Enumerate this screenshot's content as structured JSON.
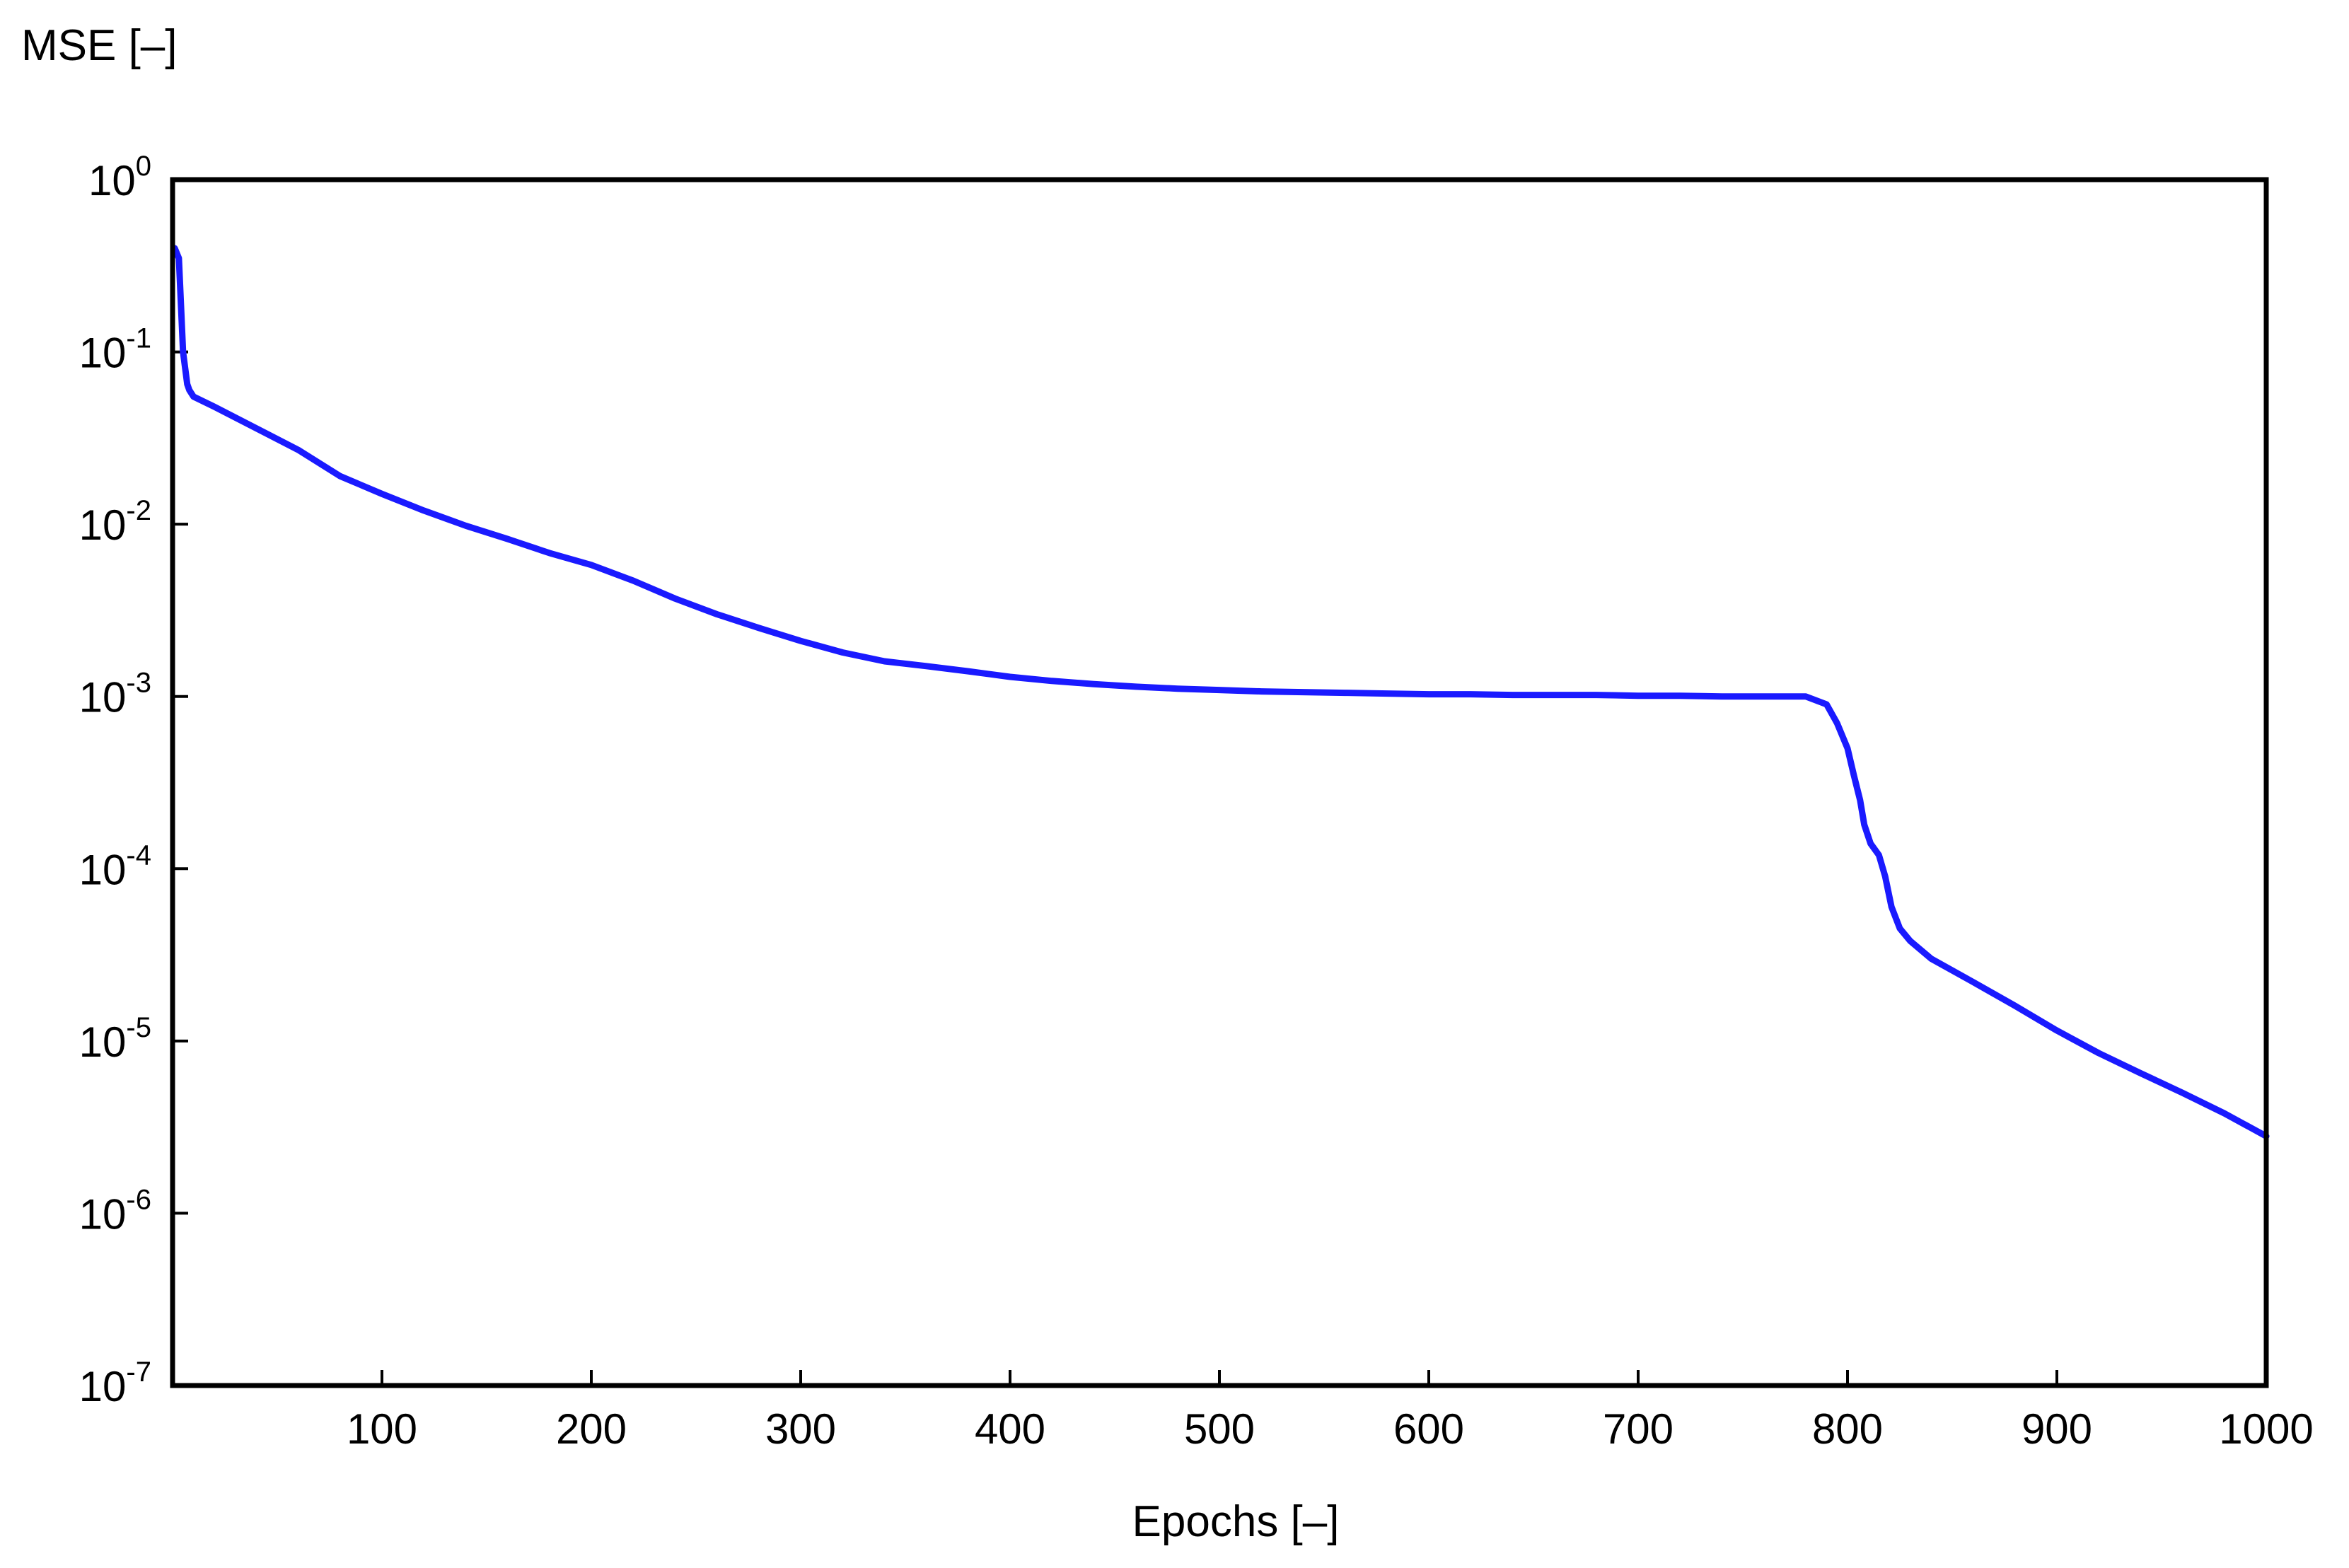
{
  "chart_data": {
    "type": "line",
    "ylabel": "MSE [–]",
    "xlabel": "Epochs [–]",
    "y_scale": "log",
    "xlim": [
      0,
      1000
    ],
    "ylim": [
      1e-07,
      1
    ],
    "x_ticks": [
      100,
      200,
      300,
      400,
      500,
      600,
      700,
      800,
      900,
      1000
    ],
    "x_tick_labels": [
      "100",
      "200",
      "300",
      "400",
      "500",
      "600",
      "700",
      "800",
      "900",
      "1000"
    ],
    "y_ticks": [
      {
        "value": 1,
        "base": "10",
        "exp": "0"
      },
      {
        "value": 0.1,
        "base": "10",
        "exp": "-1"
      },
      {
        "value": 0.01,
        "base": "10",
        "exp": "-2"
      },
      {
        "value": 0.001,
        "base": "10",
        "exp": "-3"
      },
      {
        "value": 0.0001,
        "base": "10",
        "exp": "-4"
      },
      {
        "value": 1e-05,
        "base": "10",
        "exp": "-5"
      },
      {
        "value": 1e-06,
        "base": "10",
        "exp": "-6"
      },
      {
        "value": 1e-07,
        "base": "10",
        "exp": "-7"
      }
    ],
    "grid": false,
    "line_color": "#1a1aff",
    "series": [
      {
        "x": [
          1,
          3,
          5,
          7,
          8,
          10,
          20,
          40,
          60,
          80,
          100,
          120,
          140,
          160,
          180,
          200,
          220,
          240,
          260,
          280,
          300,
          320,
          340,
          360,
          380,
          400,
          420,
          440,
          460,
          480,
          500,
          520,
          540,
          560,
          580,
          600,
          620,
          640,
          660,
          680,
          700,
          720,
          740,
          760,
          780,
          790,
          795,
          800,
          803,
          806,
          808,
          811,
          815,
          818,
          821,
          825,
          830,
          840,
          860,
          880,
          900,
          920,
          940,
          960,
          980,
          1000
        ],
        "y": [
          0.4,
          0.35,
          0.1,
          0.065,
          0.06,
          0.055,
          0.048,
          0.036,
          0.027,
          0.019,
          0.015,
          0.012,
          0.0098,
          0.0082,
          0.0068,
          0.0058,
          0.0047,
          0.0037,
          0.003,
          0.0025,
          0.0021,
          0.0018,
          0.0016,
          0.0015,
          0.0014,
          0.0013,
          0.00123,
          0.00118,
          0.00114,
          0.00111,
          0.00109,
          0.00107,
          0.00106,
          0.00105,
          0.00104,
          0.00103,
          0.00103,
          0.00102,
          0.00102,
          0.00102,
          0.00101,
          0.00101,
          0.001,
          0.001,
          0.001,
          0.0009,
          0.0007,
          0.0005,
          0.00035,
          0.00025,
          0.00018,
          0.00014,
          0.00012,
          9e-05,
          6e-05,
          4.5e-05,
          3.8e-05,
          3e-05,
          2.2e-05,
          1.6e-05,
          1.15e-05,
          8.5e-06,
          6.5e-06,
          5e-06,
          3.8e-06,
          2.8e-06
        ]
      }
    ]
  }
}
